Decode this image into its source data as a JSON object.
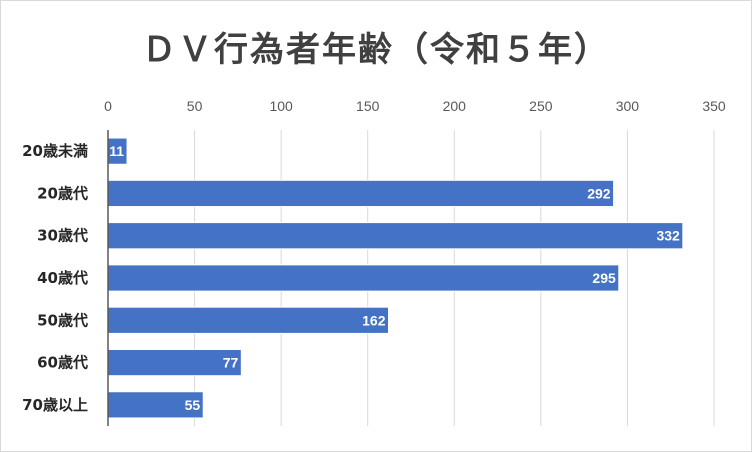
{
  "chart_data": {
    "type": "bar",
    "orientation": "horizontal",
    "title": "ＤＶ行為者年齢（令和５年）",
    "categories": [
      "20歳未満",
      "20歳代",
      "30歳代",
      "40歳代",
      "50歳代",
      "60歳代",
      "70歳以上"
    ],
    "values": [
      11,
      292,
      332,
      295,
      162,
      77,
      55
    ],
    "xlim": [
      0,
      350
    ],
    "xticks": [
      0,
      50,
      100,
      150,
      200,
      250,
      300,
      350
    ],
    "axis_position": "top",
    "grid": true,
    "bar_color": "#4472c4",
    "data_labels": true
  }
}
